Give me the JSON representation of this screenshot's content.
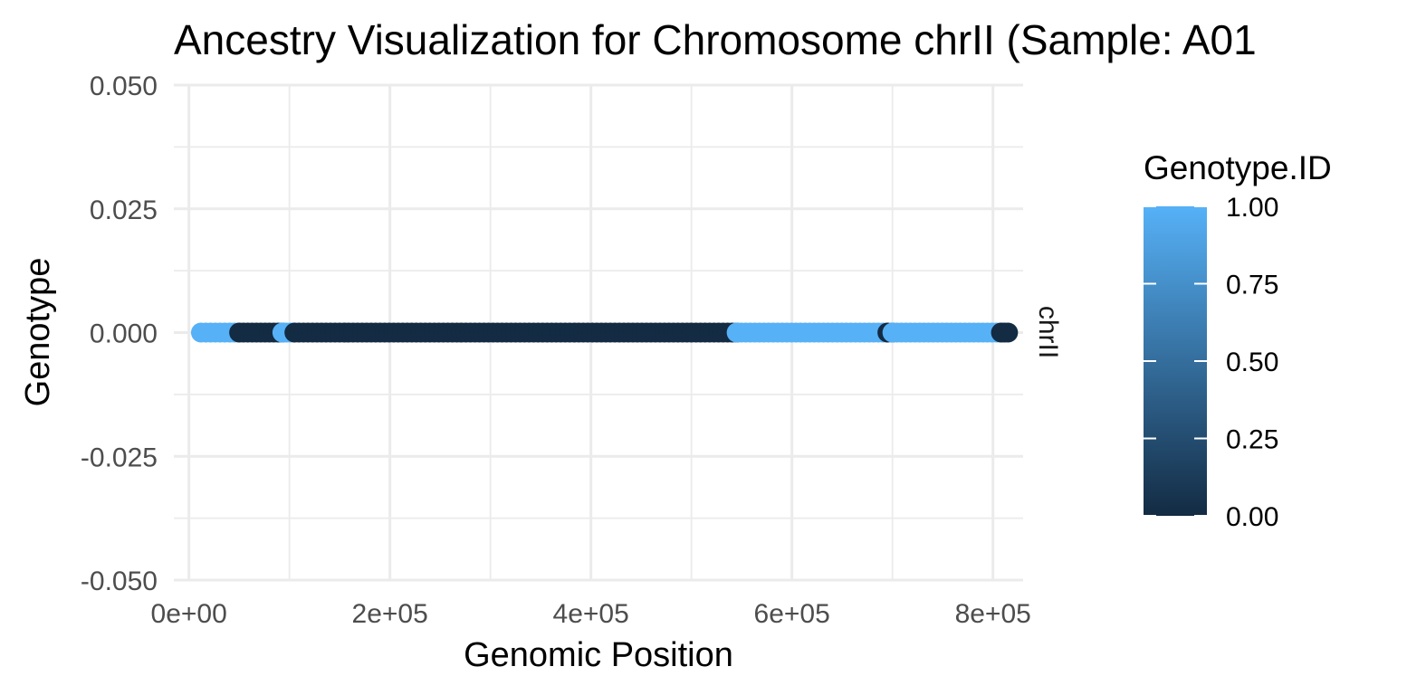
{
  "chart_data": {
    "type": "scatter",
    "title": "Ancestry Visualization for Chromosome chrII (Sample: A01",
    "xlabel": "Genomic Position",
    "ylabel": "Genotype",
    "xlim": [
      -15000,
      830000
    ],
    "ylim": [
      -0.05,
      0.05
    ],
    "x_ticks": [
      {
        "value": 0,
        "label": "0e+00"
      },
      {
        "value": 200000,
        "label": "2e+05"
      },
      {
        "value": 400000,
        "label": "4e+05"
      },
      {
        "value": 600000,
        "label": "6e+05"
      },
      {
        "value": 800000,
        "label": "8e+05"
      }
    ],
    "y_ticks": [
      {
        "value": 0.05,
        "label": "0.050"
      },
      {
        "value": 0.025,
        "label": "0.025"
      },
      {
        "value": 0.0,
        "label": "0.000"
      },
      {
        "value": -0.025,
        "label": "-0.025"
      },
      {
        "value": -0.05,
        "label": "-0.050"
      }
    ],
    "facet_label": "chrII",
    "grid": true,
    "legend": {
      "title": "Genotype.ID",
      "position": "right",
      "type": "colorbar",
      "range": [
        0,
        1
      ],
      "ticks": [
        {
          "value": 1.0,
          "label": "1.00"
        },
        {
          "value": 0.75,
          "label": "0.75"
        },
        {
          "value": 0.5,
          "label": "0.50"
        },
        {
          "value": 0.25,
          "label": "0.25"
        },
        {
          "value": 0.0,
          "label": "0.00"
        }
      ],
      "low_color": "#132B43",
      "high_color": "#56B1F7"
    },
    "segments": [
      {
        "x_start": 12000,
        "x_end": 50000,
        "genotype_id": 1
      },
      {
        "x_start": 50000,
        "x_end": 93000,
        "genotype_id": 0
      },
      {
        "x_start": 93000,
        "x_end": 105000,
        "genotype_id": 1
      },
      {
        "x_start": 105000,
        "x_end": 545000,
        "genotype_id": 0
      },
      {
        "x_start": 545000,
        "x_end": 695000,
        "genotype_id": 1
      },
      {
        "x_start": 695000,
        "x_end": 700000,
        "genotype_id": 0
      },
      {
        "x_start": 700000,
        "x_end": 808000,
        "genotype_id": 1
      },
      {
        "x_start": 808000,
        "x_end": 815000,
        "genotype_id": 0
      }
    ]
  }
}
